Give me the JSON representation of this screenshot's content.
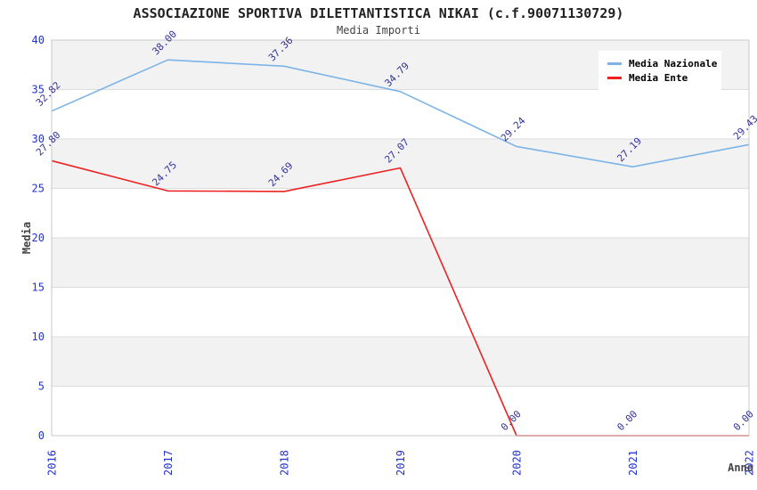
{
  "header": {
    "title": "ASSOCIAZIONE SPORTIVA DILETTANTISTICA NIKAI (c.f.90071130729)",
    "subtitle": "Media Importi"
  },
  "chart_data": {
    "type": "line",
    "x": [
      "2016",
      "2017",
      "2018",
      "2019",
      "2020",
      "2021",
      "2022"
    ],
    "xlabel": "Anno",
    "ylabel": "Media",
    "ylim": [
      0,
      40
    ],
    "ytick_step": 5,
    "grid": "horizontal",
    "background_bands": true,
    "legend_position": "top-right",
    "point_label_decimals": 2,
    "series": [
      {
        "name": "Media Nazionale",
        "color": "#7cb4e8",
        "values": [
          32.82,
          38.0,
          37.36,
          34.79,
          29.24,
          27.19,
          29.43
        ]
      },
      {
        "name": "Media Ente",
        "color": "#ee2222",
        "values": [
          27.8,
          24.75,
          24.69,
          27.07,
          0.0,
          0.0,
          0.0
        ]
      }
    ],
    "colors": {
      "tick_label": "#2233cc",
      "point_label": "#333399",
      "band": "#f2f2f2",
      "gridline": "#dcdcdc",
      "plot_border": "#c8c8c8",
      "axis_title": "#444444"
    }
  }
}
